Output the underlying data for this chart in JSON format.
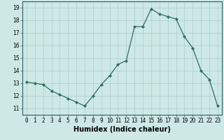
{
  "x": [
    0,
    1,
    2,
    3,
    4,
    5,
    6,
    7,
    8,
    9,
    10,
    11,
    12,
    13,
    14,
    15,
    16,
    17,
    18,
    19,
    20,
    21,
    22,
    23
  ],
  "y": [
    13.1,
    13.0,
    12.9,
    12.4,
    12.1,
    11.8,
    11.5,
    11.2,
    12.0,
    12.9,
    13.6,
    14.5,
    14.8,
    17.5,
    17.5,
    18.9,
    18.5,
    18.3,
    18.1,
    16.7,
    15.8,
    14.0,
    13.3,
    11.2
  ],
  "line_color": "#2d7060",
  "marker": "D",
  "marker_size": 2.0,
  "bg_color": "#cde8e5",
  "grid_color": "#aacfcc",
  "xlabel": "Humidex (Indice chaleur)",
  "xlim": [
    -0.5,
    23.5
  ],
  "ylim": [
    10.5,
    19.5
  ],
  "yticks": [
    11,
    12,
    13,
    14,
    15,
    16,
    17,
    18,
    19
  ],
  "xticks": [
    0,
    1,
    2,
    3,
    4,
    5,
    6,
    7,
    8,
    9,
    10,
    11,
    12,
    13,
    14,
    15,
    16,
    17,
    18,
    19,
    20,
    21,
    22,
    23
  ],
  "xtick_labels": [
    "0",
    "1",
    "2",
    "3",
    "4",
    "5",
    "6",
    "7",
    "8",
    "9",
    "10",
    "11",
    "12",
    "13",
    "14",
    "15",
    "16",
    "17",
    "18",
    "19",
    "20",
    "21",
    "22",
    "23"
  ],
  "tick_fontsize": 5.5,
  "xlabel_fontsize": 7.0,
  "axis_color": "#2d6060"
}
